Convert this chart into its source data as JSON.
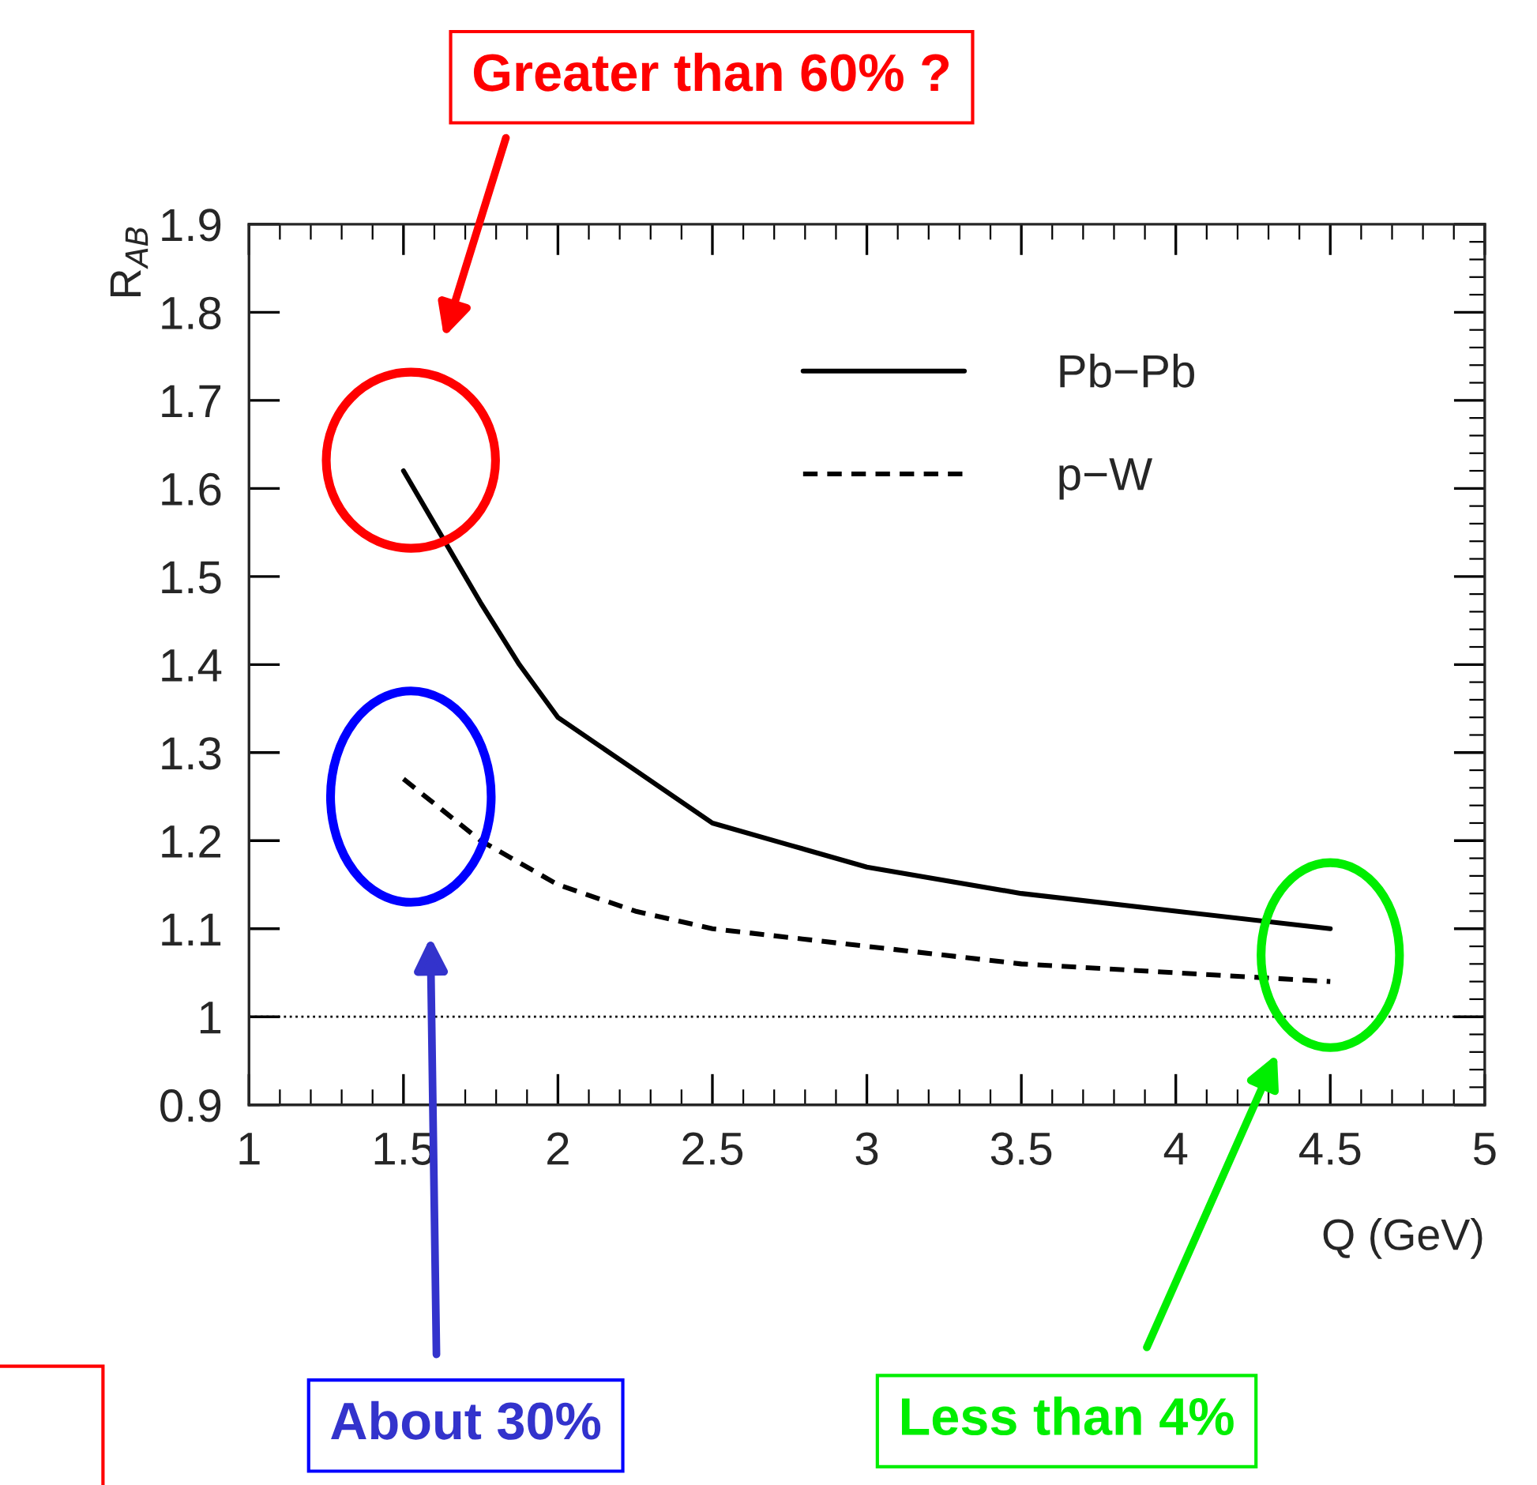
{
  "chart_data": {
    "type": "line",
    "xlabel": "Q (GeV)",
    "ylabel": "R$_{AB}$",
    "xlim": [
      1,
      5
    ],
    "xticks": [
      1,
      1.5,
      2,
      2.5,
      3,
      3.5,
      4,
      4.5,
      5
    ],
    "ylim": [
      0.9,
      1.9
    ],
    "yticks": [
      0.9,
      1,
      1.1,
      1.2,
      1.3,
      1.4,
      1.5,
      1.6,
      1.7,
      1.8,
      1.9
    ],
    "legend": "top right",
    "grid": false,
    "series": [
      {
        "name": "Pb−Pb",
        "color": "#000000",
        "line_style": "solid",
        "x": [
          1.5,
          1.625,
          1.75,
          1.875,
          2,
          2.25,
          2.5,
          2.75,
          3,
          3.5,
          4,
          4.5
        ],
        "values": [
          1.62,
          1.545,
          1.47,
          1.4,
          1.34,
          1.28,
          1.22,
          1.195,
          1.17,
          1.14,
          1.12,
          1.1
        ]
      },
      {
        "name": "p−W",
        "color": "#000000",
        "line_style": "dashed",
        "x": [
          1.5,
          1.625,
          1.75,
          2,
          2.25,
          2.5,
          3,
          3.5,
          4,
          4.5
        ],
        "values": [
          1.27,
          1.235,
          1.2,
          1.15,
          1.12,
          1.1,
          1.08,
          1.06,
          1.05,
          1.04
        ]
      }
    ],
    "ref_lines": [
      {
        "axis": "y",
        "value": 1,
        "line_style": "dotted",
        "color": "#000000"
      }
    ],
    "annotations": [
      "Greater than 60% ?",
      "About 30%",
      "Less than 4%"
    ]
  }
}
